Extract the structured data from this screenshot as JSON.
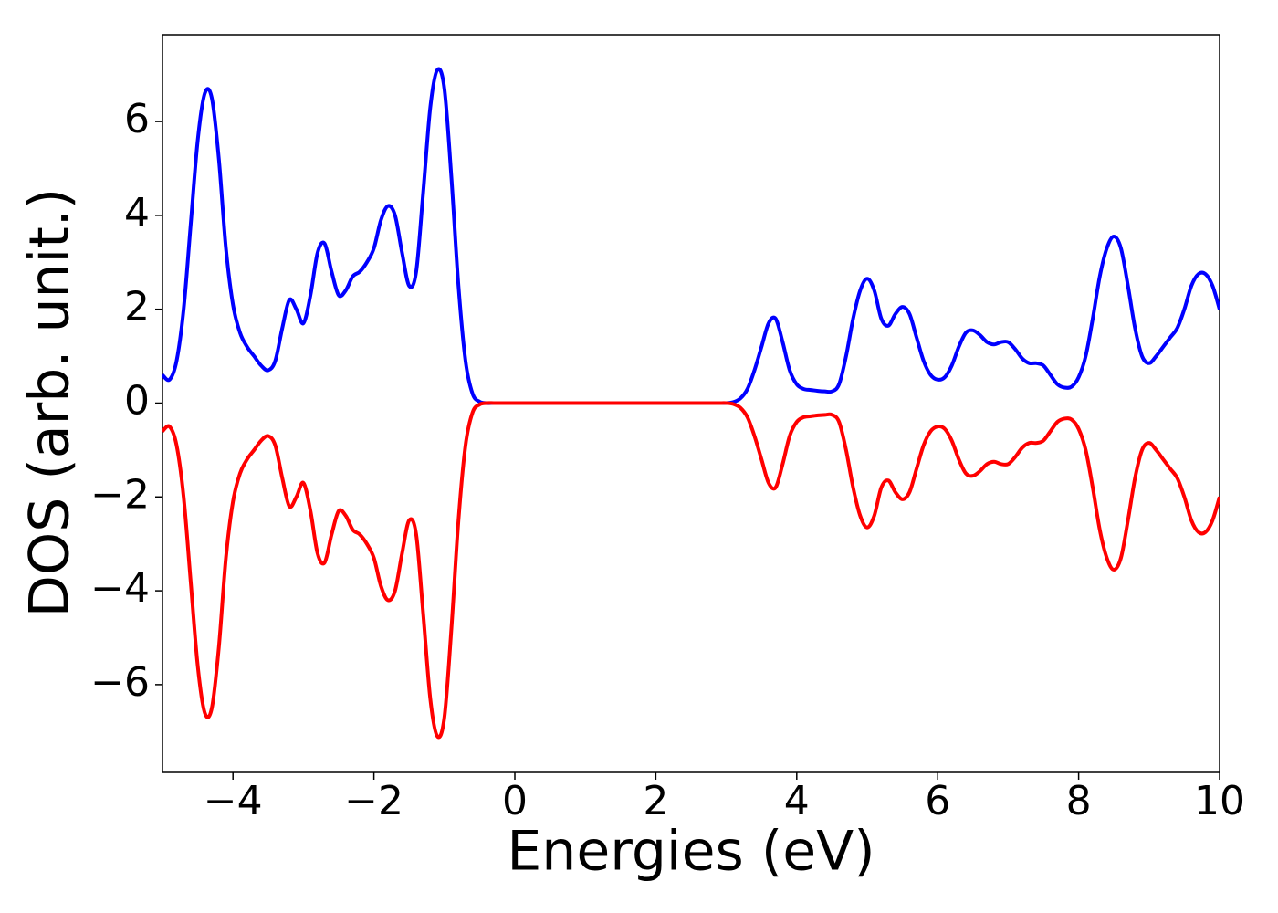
{
  "chart_data": {
    "type": "line",
    "xlabel": "Energies (eV)",
    "ylabel": "DOS (arb. unit.)",
    "x": [
      -5.0,
      -4.9,
      -4.8,
      -4.7,
      -4.6,
      -4.5,
      -4.4,
      -4.3,
      -4.2,
      -4.1,
      -4.0,
      -3.9,
      -3.8,
      -3.7,
      -3.6,
      -3.5,
      -3.4,
      -3.3,
      -3.2,
      -3.1,
      -3.0,
      -2.9,
      -2.8,
      -2.7,
      -2.6,
      -2.5,
      -2.4,
      -2.3,
      -2.2,
      -2.1,
      -2.0,
      -1.9,
      -1.8,
      -1.7,
      -1.6,
      -1.5,
      -1.4,
      -1.3,
      -1.2,
      -1.1,
      -1.0,
      -0.9,
      -0.8,
      -0.7,
      -0.6,
      -0.5,
      -0.4,
      -0.3,
      -0.2,
      -0.1,
      0.0,
      0.1,
      0.2,
      0.3,
      0.4,
      0.5,
      0.6,
      0.7,
      0.8,
      0.9,
      1.0,
      1.1,
      1.2,
      1.3,
      1.4,
      1.5,
      1.6,
      1.7,
      1.8,
      1.9,
      2.0,
      2.1,
      2.2,
      2.3,
      2.4,
      2.5,
      2.6,
      2.7,
      2.8,
      2.9,
      3.0,
      3.1,
      3.2,
      3.3,
      3.4,
      3.5,
      3.6,
      3.7,
      3.8,
      3.9,
      4.0,
      4.1,
      4.2,
      4.3,
      4.4,
      4.5,
      4.6,
      4.7,
      4.8,
      4.9,
      5.0,
      5.1,
      5.2,
      5.3,
      5.4,
      5.5,
      5.6,
      5.7,
      5.8,
      5.9,
      6.0,
      6.1,
      6.2,
      6.3,
      6.4,
      6.5,
      6.6,
      6.7,
      6.8,
      6.9,
      7.0,
      7.1,
      7.2,
      7.3,
      7.4,
      7.5,
      7.6,
      7.7,
      7.8,
      7.9,
      8.0,
      8.1,
      8.2,
      8.3,
      8.4,
      8.5,
      8.6,
      8.7,
      8.8,
      8.9,
      9.0,
      9.1,
      9.2,
      9.3,
      9.4,
      9.5,
      9.6,
      9.7,
      9.8,
      9.9,
      10.0
    ],
    "series": [
      {
        "color": "#0000ff",
        "values": [
          0.6,
          0.5,
          0.9,
          2.0,
          3.8,
          5.6,
          6.6,
          6.5,
          5.2,
          3.3,
          2.1,
          1.5,
          1.2,
          1.0,
          0.8,
          0.7,
          0.9,
          1.6,
          2.2,
          2.0,
          1.7,
          2.3,
          3.2,
          3.4,
          2.8,
          2.3,
          2.4,
          2.7,
          2.8,
          3.0,
          3.3,
          3.9,
          4.2,
          4.0,
          3.2,
          2.5,
          2.8,
          4.5,
          6.3,
          7.1,
          6.7,
          4.8,
          2.5,
          0.9,
          0.2,
          0.03,
          0,
          0,
          0,
          0,
          0,
          0,
          0,
          0,
          0,
          0,
          0,
          0,
          0,
          0,
          0,
          0,
          0,
          0,
          0,
          0,
          0,
          0,
          0,
          0,
          0,
          0,
          0,
          0,
          0,
          0,
          0,
          0,
          0,
          0,
          0,
          0.02,
          0.1,
          0.3,
          0.7,
          1.2,
          1.7,
          1.8,
          1.3,
          0.7,
          0.4,
          0.3,
          0.28,
          0.26,
          0.25,
          0.25,
          0.4,
          1.0,
          1.8,
          2.4,
          2.65,
          2.4,
          1.8,
          1.65,
          1.9,
          2.05,
          1.9,
          1.4,
          0.9,
          0.6,
          0.5,
          0.55,
          0.8,
          1.2,
          1.5,
          1.55,
          1.45,
          1.3,
          1.25,
          1.3,
          1.3,
          1.15,
          0.95,
          0.85,
          0.85,
          0.8,
          0.6,
          0.4,
          0.33,
          0.35,
          0.55,
          1.0,
          1.8,
          2.7,
          3.3,
          3.55,
          3.3,
          2.5,
          1.6,
          1.0,
          0.85,
          1.0,
          1.2,
          1.4,
          1.6,
          2.0,
          2.5,
          2.75,
          2.75,
          2.5,
          2.0
        ]
      },
      {
        "color": "#ff0000",
        "values": [
          -0.6,
          -0.5,
          -0.9,
          -2.0,
          -3.8,
          -5.6,
          -6.6,
          -6.5,
          -5.2,
          -3.3,
          -2.1,
          -1.5,
          -1.2,
          -1.0,
          -0.8,
          -0.7,
          -0.9,
          -1.6,
          -2.2,
          -2.0,
          -1.7,
          -2.3,
          -3.2,
          -3.4,
          -2.8,
          -2.3,
          -2.4,
          -2.7,
          -2.8,
          -3.0,
          -3.3,
          -3.9,
          -4.2,
          -4.0,
          -3.2,
          -2.5,
          -2.8,
          -4.5,
          -6.3,
          -7.1,
          -6.7,
          -4.8,
          -2.5,
          -0.9,
          -0.2,
          -0.03,
          0,
          0,
          0,
          0,
          0,
          0,
          0,
          0,
          0,
          0,
          0,
          0,
          0,
          0,
          0,
          0,
          0,
          0,
          0,
          0,
          0,
          0,
          0,
          0,
          0,
          0,
          0,
          0,
          0,
          0,
          0,
          0,
          0,
          0,
          0,
          -0.02,
          -0.1,
          -0.3,
          -0.7,
          -1.2,
          -1.7,
          -1.8,
          -1.3,
          -0.7,
          -0.4,
          -0.3,
          -0.28,
          -0.26,
          -0.25,
          -0.25,
          -0.4,
          -1.0,
          -1.8,
          -2.4,
          -2.65,
          -2.4,
          -1.8,
          -1.65,
          -1.9,
          -2.05,
          -1.9,
          -1.4,
          -0.9,
          -0.6,
          -0.5,
          -0.55,
          -0.8,
          -1.2,
          -1.5,
          -1.55,
          -1.45,
          -1.3,
          -1.25,
          -1.3,
          -1.3,
          -1.15,
          -0.95,
          -0.85,
          -0.85,
          -0.8,
          -0.6,
          -0.4,
          -0.33,
          -0.35,
          -0.55,
          -1.0,
          -1.8,
          -2.7,
          -3.3,
          -3.55,
          -3.3,
          -2.5,
          -1.6,
          -1.0,
          -0.85,
          -1.0,
          -1.2,
          -1.4,
          -1.6,
          -2.0,
          -2.5,
          -2.75,
          -2.75,
          -2.5,
          -2.0
        ]
      }
    ],
    "xlim": [
      -5,
      10
    ],
    "xticks": [
      {
        "value": -4,
        "label": "−4"
      },
      {
        "value": -2,
        "label": "−2"
      },
      0,
      2,
      4,
      6,
      8,
      10
    ],
    "ylim": [
      -7.87,
      7.85
    ],
    "yticks": [
      {
        "value": -6,
        "label": "−6"
      },
      {
        "value": -4,
        "label": "−4"
      },
      {
        "value": -2,
        "label": "−2"
      },
      0,
      2,
      4,
      6
    ],
    "grid": false
  }
}
